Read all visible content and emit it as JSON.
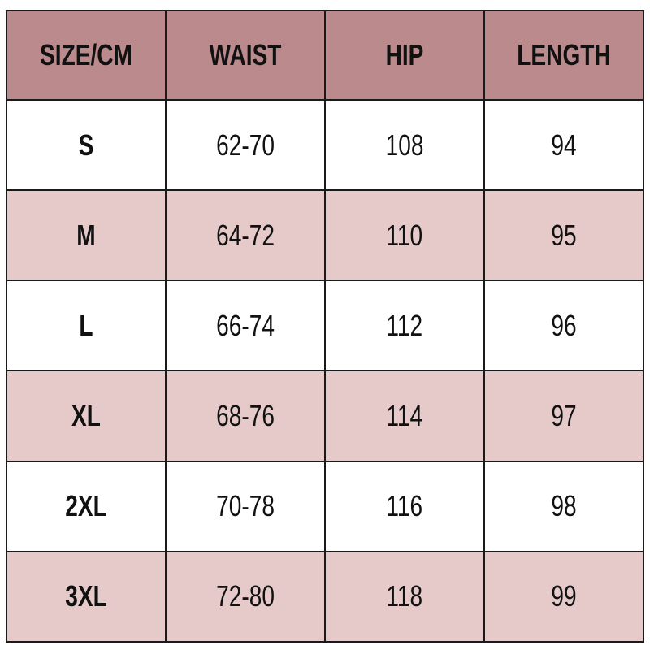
{
  "table": {
    "headers": [
      "SIZE/CM",
      "WAIST",
      "HIP",
      "LENGTH"
    ],
    "rows": [
      [
        "S",
        "62-70",
        "108",
        "94"
      ],
      [
        "M",
        "64-72",
        "110",
        "95"
      ],
      [
        "L",
        "66-74",
        "112",
        "96"
      ],
      [
        "XL",
        "68-76",
        "114",
        "97"
      ],
      [
        "2XL",
        "70-78",
        "116",
        "98"
      ],
      [
        "3XL",
        "72-80",
        "118",
        "99"
      ]
    ]
  },
  "colors": {
    "header": "#bb8a8c",
    "alt_row": "#e5cac9",
    "row": "#ffffff"
  }
}
